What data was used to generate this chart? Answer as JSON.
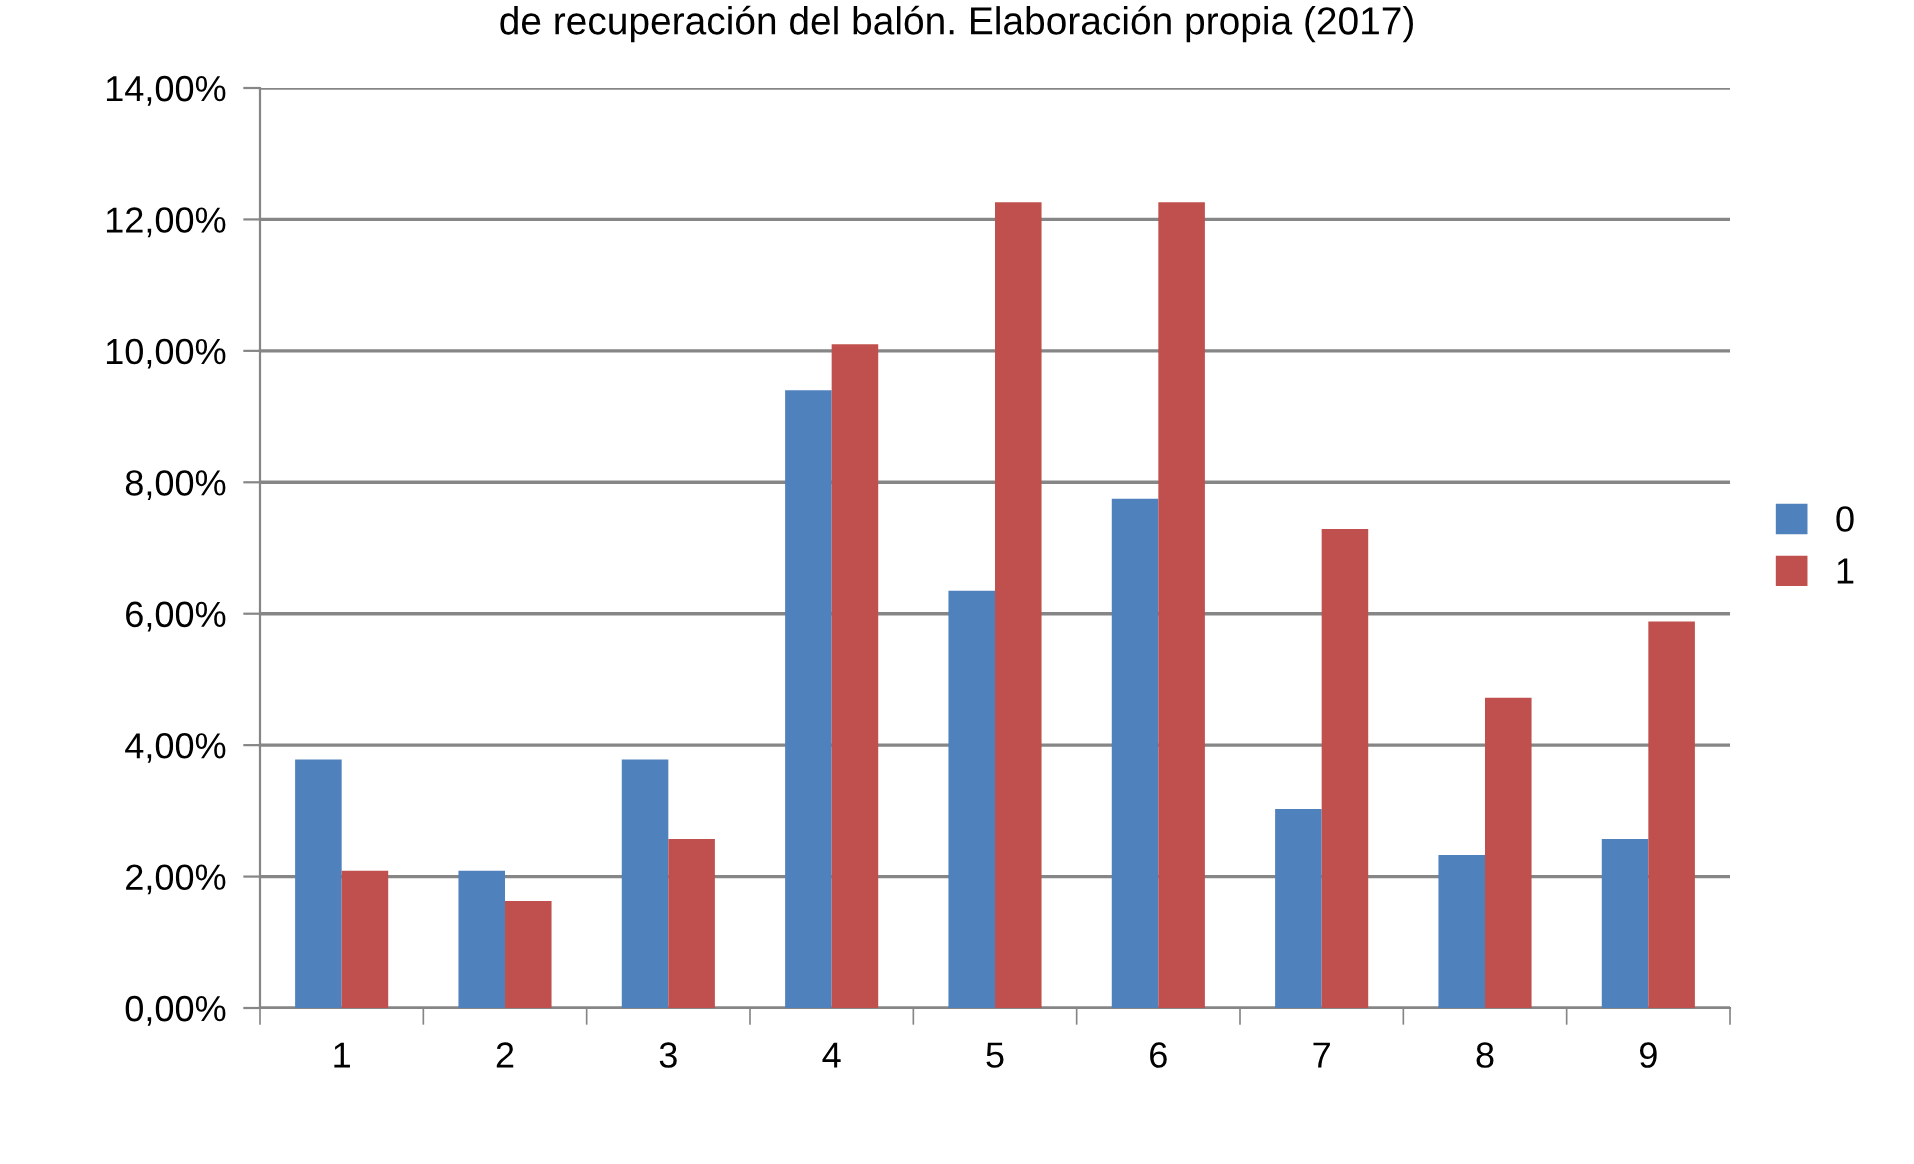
{
  "chart_data": {
    "type": "bar",
    "title": "de recuperación del balón. Elaboración propia (2017)",
    "categories": [
      "1",
      "2",
      "3",
      "4",
      "5",
      "6",
      "7",
      "8",
      "9"
    ],
    "series": [
      {
        "name": "0",
        "color": "#4f81bd",
        "values": [
          3.78,
          2.09,
          3.78,
          9.4,
          6.35,
          7.75,
          3.03,
          2.33,
          2.57
        ]
      },
      {
        "name": "1",
        "color": "#c0504d",
        "values": [
          2.09,
          1.63,
          2.57,
          10.1,
          12.26,
          12.26,
          7.29,
          4.72,
          5.88
        ]
      }
    ],
    "ylim": [
      0,
      14
    ],
    "yticks": [
      {
        "value": 0,
        "label": "0,00%"
      },
      {
        "value": 2,
        "label": "2,00%"
      },
      {
        "value": 4,
        "label": "4,00%"
      },
      {
        "value": 6,
        "label": "6,00%"
      },
      {
        "value": 8,
        "label": "8,00%"
      },
      {
        "value": 10,
        "label": "10,00%"
      },
      {
        "value": 12,
        "label": "12,00%"
      },
      {
        "value": 14,
        "label": "14,00%"
      }
    ],
    "grid": "y",
    "legend": "right"
  }
}
